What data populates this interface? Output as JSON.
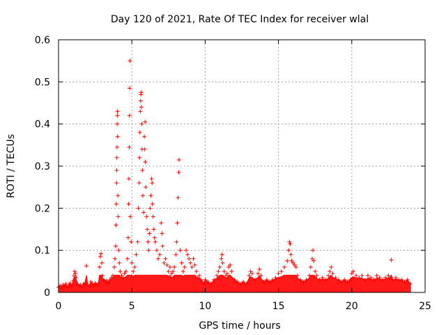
{
  "chart_data": {
    "type": "scatter",
    "title": "Day 120 of 2021, Rate Of TEC Index for receiver wlal",
    "xlabel": "GPS time / hours",
    "ylabel": "ROTI / TECUs",
    "xlim": [
      0,
      25
    ],
    "ylim": [
      0,
      0.6
    ],
    "xticks": [
      0,
      5,
      10,
      15,
      20,
      25
    ],
    "yticks": [
      0,
      0.1,
      0.2,
      0.3,
      0.4,
      0.5,
      0.6
    ],
    "xtick_labels": [
      "0",
      "5",
      "10",
      "15",
      "20",
      "25"
    ],
    "ytick_labels": [
      "0",
      "0.1",
      "0.2",
      "0.3",
      "0.4",
      "0.5",
      "0.6"
    ],
    "grid": true,
    "marker": "+",
    "series": [
      {
        "name": "ROTI",
        "color": "#ff0000",
        "points": [
          [
            0.0,
            0.012
          ],
          [
            0.1,
            0.016
          ],
          [
            0.2,
            0.01
          ],
          [
            0.3,
            0.018
          ],
          [
            0.4,
            0.014
          ],
          [
            0.5,
            0.02
          ],
          [
            0.6,
            0.011
          ],
          [
            0.7,
            0.017
          ],
          [
            0.8,
            0.022
          ],
          [
            0.9,
            0.015
          ],
          [
            1.0,
            0.028
          ],
          [
            1.05,
            0.04
          ],
          [
            1.1,
            0.05
          ],
          [
            1.15,
            0.045
          ],
          [
            1.2,
            0.036
          ],
          [
            1.3,
            0.02
          ],
          [
            1.4,
            0.016
          ],
          [
            1.5,
            0.018
          ],
          [
            1.6,
            0.012
          ],
          [
            1.7,
            0.02
          ],
          [
            1.8,
            0.022
          ],
          [
            1.9,
            0.063
          ],
          [
            2.0,
            0.018
          ],
          [
            2.1,
            0.015
          ],
          [
            2.2,
            0.025
          ],
          [
            2.3,
            0.02
          ],
          [
            2.4,
            0.016
          ],
          [
            2.5,
            0.022
          ],
          [
            2.6,
            0.018
          ],
          [
            2.7,
            0.02
          ],
          [
            2.8,
            0.06
          ],
          [
            2.85,
            0.085
          ],
          [
            2.9,
            0.092
          ],
          [
            2.95,
            0.07
          ],
          [
            3.0,
            0.04
          ],
          [
            3.1,
            0.03
          ],
          [
            3.2,
            0.025
          ],
          [
            3.3,
            0.028
          ],
          [
            3.4,
            0.022
          ],
          [
            3.5,
            0.03
          ],
          [
            3.6,
            0.035
          ],
          [
            3.7,
            0.04
          ],
          [
            3.8,
            0.06
          ],
          [
            3.85,
            0.08
          ],
          [
            3.9,
            0.11
          ],
          [
            3.92,
            0.16
          ],
          [
            3.94,
            0.21
          ],
          [
            3.96,
            0.26
          ],
          [
            3.97,
            0.29
          ],
          [
            3.98,
            0.32
          ],
          [
            3.99,
            0.345
          ],
          [
            4.0,
            0.4
          ],
          [
            4.01,
            0.42
          ],
          [
            4.02,
            0.43
          ],
          [
            4.03,
            0.37
          ],
          [
            4.05,
            0.23
          ],
          [
            4.07,
            0.18
          ],
          [
            4.1,
            0.1
          ],
          [
            4.15,
            0.07
          ],
          [
            4.2,
            0.05
          ],
          [
            4.3,
            0.04
          ],
          [
            4.4,
            0.035
          ],
          [
            4.5,
            0.045
          ],
          [
            4.6,
            0.05
          ],
          [
            4.7,
            0.08
          ],
          [
            4.75,
            0.13
          ],
          [
            4.78,
            0.21
          ],
          [
            4.8,
            0.27
          ],
          [
            4.82,
            0.345
          ],
          [
            4.84,
            0.42
          ],
          [
            4.85,
            0.485
          ],
          [
            4.87,
            0.55
          ],
          [
            4.9,
            0.18
          ],
          [
            4.95,
            0.12
          ],
          [
            5.0,
            0.07
          ],
          [
            5.1,
            0.05
          ],
          [
            5.2,
            0.06
          ],
          [
            5.3,
            0.09
          ],
          [
            5.4,
            0.12
          ],
          [
            5.45,
            0.2
          ],
          [
            5.5,
            0.26
          ],
          [
            5.52,
            0.32
          ],
          [
            5.55,
            0.38
          ],
          [
            5.58,
            0.43
          ],
          [
            5.6,
            0.455
          ],
          [
            5.62,
            0.47
          ],
          [
            5.64,
            0.475
          ],
          [
            5.65,
            0.44
          ],
          [
            5.68,
            0.4
          ],
          [
            5.7,
            0.34
          ],
          [
            5.72,
            0.29
          ],
          [
            5.75,
            0.23
          ],
          [
            5.8,
            0.19
          ],
          [
            5.85,
            0.37
          ],
          [
            5.88,
            0.34
          ],
          [
            5.9,
            0.405
          ],
          [
            5.92,
            0.31
          ],
          [
            5.95,
            0.25
          ],
          [
            6.0,
            0.18
          ],
          [
            6.05,
            0.15
          ],
          [
            6.1,
            0.12
          ],
          [
            6.15,
            0.1
          ],
          [
            6.2,
            0.14
          ],
          [
            6.25,
            0.2
          ],
          [
            6.3,
            0.23
          ],
          [
            6.35,
            0.27
          ],
          [
            6.38,
            0.26
          ],
          [
            6.4,
            0.21
          ],
          [
            6.45,
            0.18
          ],
          [
            6.5,
            0.15
          ],
          [
            6.55,
            0.13
          ],
          [
            6.6,
            0.12
          ],
          [
            6.7,
            0.1
          ],
          [
            6.8,
            0.08
          ],
          [
            6.9,
            0.09
          ],
          [
            7.0,
            0.165
          ],
          [
            7.05,
            0.14
          ],
          [
            7.1,
            0.11
          ],
          [
            7.2,
            0.07
          ],
          [
            7.3,
            0.08
          ],
          [
            7.4,
            0.065
          ],
          [
            7.5,
            0.05
          ],
          [
            7.6,
            0.06
          ],
          [
            7.7,
            0.045
          ],
          [
            7.8,
            0.05
          ],
          [
            7.9,
            0.06
          ],
          [
            8.0,
            0.09
          ],
          [
            8.05,
            0.12
          ],
          [
            8.1,
            0.165
          ],
          [
            8.15,
            0.225
          ],
          [
            8.2,
            0.285
          ],
          [
            8.22,
            0.315
          ],
          [
            8.3,
            0.1
          ],
          [
            8.4,
            0.07
          ],
          [
            8.5,
            0.05
          ],
          [
            8.6,
            0.06
          ],
          [
            8.7,
            0.1
          ],
          [
            8.8,
            0.09
          ],
          [
            8.9,
            0.08
          ],
          [
            9.0,
            0.07
          ],
          [
            9.1,
            0.06
          ],
          [
            9.2,
            0.08
          ],
          [
            9.3,
            0.065
          ],
          [
            9.4,
            0.05
          ],
          [
            9.5,
            0.035
          ],
          [
            9.6,
            0.04
          ],
          [
            9.7,
            0.03
          ],
          [
            9.8,
            0.025
          ],
          [
            9.9,
            0.02
          ],
          [
            10.0,
            0.03
          ],
          [
            10.2,
            0.025
          ],
          [
            10.4,
            0.02
          ],
          [
            10.6,
            0.03
          ],
          [
            10.8,
            0.04
          ],
          [
            10.9,
            0.05
          ],
          [
            11.0,
            0.06
          ],
          [
            11.1,
            0.08
          ],
          [
            11.15,
            0.09
          ],
          [
            11.2,
            0.07
          ],
          [
            11.3,
            0.05
          ],
          [
            11.4,
            0.04
          ],
          [
            11.5,
            0.045
          ],
          [
            11.6,
            0.06
          ],
          [
            11.7,
            0.065
          ],
          [
            11.8,
            0.05
          ],
          [
            12.0,
            0.03
          ],
          [
            12.2,
            0.025
          ],
          [
            12.4,
            0.02
          ],
          [
            12.6,
            0.025
          ],
          [
            12.8,
            0.02
          ],
          [
            13.0,
            0.04
          ],
          [
            13.1,
            0.05
          ],
          [
            13.2,
            0.045
          ],
          [
            13.4,
            0.03
          ],
          [
            13.6,
            0.045
          ],
          [
            13.7,
            0.055
          ],
          [
            13.8,
            0.04
          ],
          [
            14.0,
            0.025
          ],
          [
            14.2,
            0.03
          ],
          [
            14.4,
            0.025
          ],
          [
            14.6,
            0.03
          ],
          [
            14.8,
            0.035
          ],
          [
            15.0,
            0.045
          ],
          [
            15.2,
            0.05
          ],
          [
            15.4,
            0.06
          ],
          [
            15.6,
            0.075
          ],
          [
            15.7,
            0.1
          ],
          [
            15.75,
            0.12
          ],
          [
            15.8,
            0.115
          ],
          [
            15.85,
            0.09
          ],
          [
            15.9,
            0.075
          ],
          [
            16.0,
            0.07
          ],
          [
            16.1,
            0.065
          ],
          [
            16.2,
            0.06
          ],
          [
            16.3,
            0.04
          ],
          [
            16.5,
            0.03
          ],
          [
            16.7,
            0.025
          ],
          [
            16.9,
            0.03
          ],
          [
            17.1,
            0.04
          ],
          [
            17.2,
            0.06
          ],
          [
            17.3,
            0.08
          ],
          [
            17.35,
            0.1
          ],
          [
            17.4,
            0.075
          ],
          [
            17.5,
            0.05
          ],
          [
            17.6,
            0.04
          ],
          [
            17.8,
            0.03
          ],
          [
            18.0,
            0.035
          ],
          [
            18.2,
            0.03
          ],
          [
            18.4,
            0.04
          ],
          [
            18.5,
            0.05
          ],
          [
            18.6,
            0.06
          ],
          [
            18.7,
            0.045
          ],
          [
            18.9,
            0.035
          ],
          [
            19.1,
            0.03
          ],
          [
            19.3,
            0.025
          ],
          [
            19.5,
            0.03
          ],
          [
            19.7,
            0.025
          ],
          [
            19.9,
            0.03
          ],
          [
            20.0,
            0.045
          ],
          [
            20.1,
            0.05
          ],
          [
            20.3,
            0.04
          ],
          [
            20.5,
            0.035
          ],
          [
            20.7,
            0.04
          ],
          [
            20.9,
            0.03
          ],
          [
            21.1,
            0.04
          ],
          [
            21.3,
            0.035
          ],
          [
            21.5,
            0.03
          ],
          [
            21.7,
            0.04
          ],
          [
            21.9,
            0.035
          ],
          [
            22.1,
            0.03
          ],
          [
            22.3,
            0.035
          ],
          [
            22.5,
            0.04
          ],
          [
            22.6,
            0.035
          ],
          [
            22.7,
            0.077
          ],
          [
            22.8,
            0.03
          ],
          [
            23.0,
            0.035
          ],
          [
            23.2,
            0.03
          ],
          [
            23.4,
            0.03
          ],
          [
            23.6,
            0.025
          ],
          [
            23.8,
            0.03
          ],
          [
            24.0,
            0.02
          ]
        ]
      }
    ]
  }
}
